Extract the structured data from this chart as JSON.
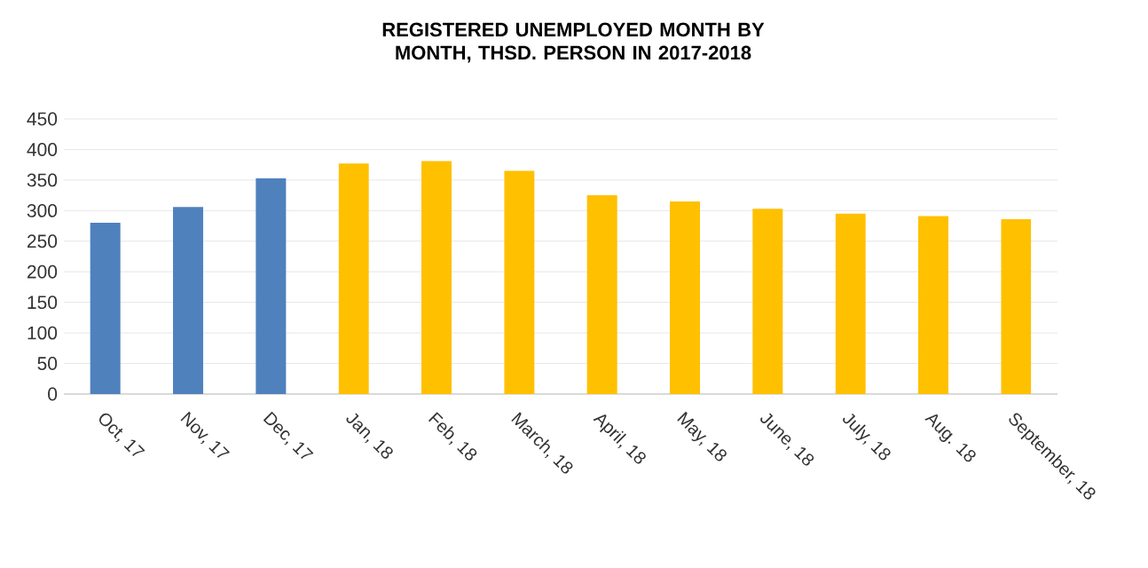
{
  "chart_data": {
    "type": "bar",
    "title": "REGISTERED UNEMPLOYED MONTH BY MONTH, THSD. PERSON IN 2017-2018",
    "categories": [
      "Oct, 17",
      "Nov, 17",
      "Dec, 17",
      "Jan, 18",
      "Feb, 18",
      "March, 18",
      "April, 18",
      "May, 18",
      "June, 18",
      "July, 18",
      "Aug. 18",
      "September, 18"
    ],
    "values": [
      280,
      306,
      353,
      377,
      381,
      365,
      325,
      315,
      303,
      295,
      291,
      286
    ],
    "colors": [
      "#4f81bd",
      "#4f81bd",
      "#4f81bd",
      "#ffc000",
      "#ffc000",
      "#ffc000",
      "#ffc000",
      "#ffc000",
      "#ffc000",
      "#ffc000",
      "#ffc000",
      "#ffc000"
    ],
    "ylim": [
      0,
      450
    ],
    "yticks": [
      0,
      50,
      100,
      150,
      200,
      250,
      300,
      350,
      400,
      450
    ],
    "grid": "y"
  }
}
